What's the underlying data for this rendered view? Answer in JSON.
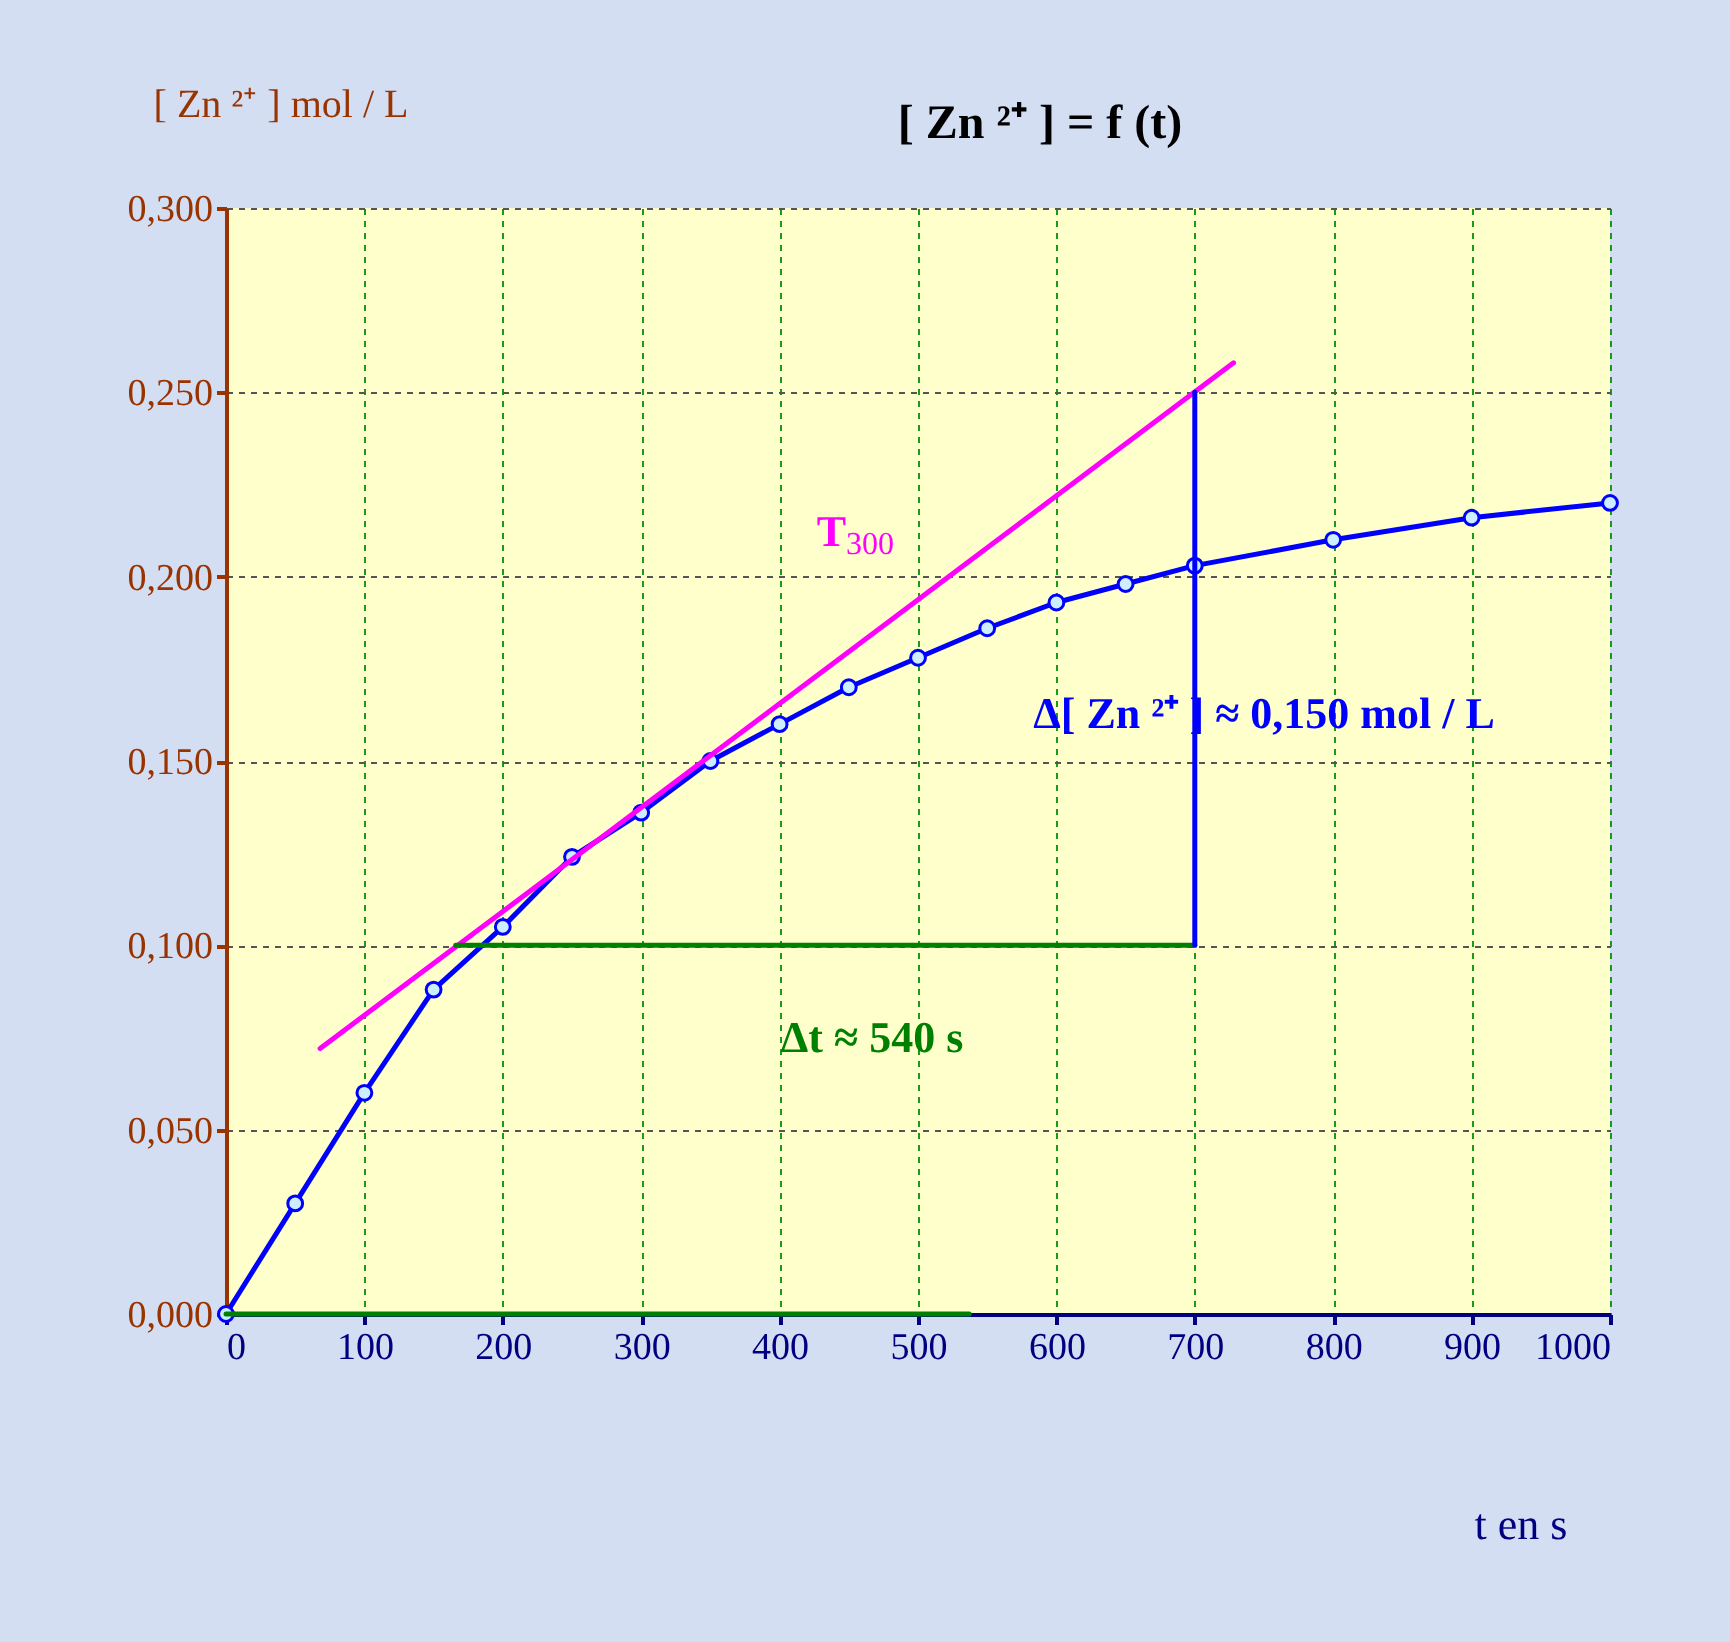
{
  "chart_data": {
    "type": "line",
    "title": "[ Zn ²⁺ ] = f (t)",
    "xlabel": "t en s",
    "ylabel": "[ Zn ²⁺ ] mol / L",
    "xlim": [
      0,
      1000
    ],
    "xticks": [
      0,
      100,
      200,
      300,
      400,
      500,
      600,
      700,
      800,
      900,
      1000
    ],
    "ylim": [
      0,
      0.3
    ],
    "yticks": [
      {
        "value": 0,
        "label": "0,000"
      },
      {
        "value": 0.05,
        "label": "0,050"
      },
      {
        "value": 0.1,
        "label": "0,100"
      },
      {
        "value": 0.15,
        "label": "0,150"
      },
      {
        "value": 0.2,
        "label": "0,200"
      },
      {
        "value": 0.25,
        "label": "0,250"
      },
      {
        "value": 0.3,
        "label": "0,300"
      }
    ],
    "grid": true,
    "line_style": "solid",
    "series": [
      {
        "color": "#0000ff",
        "marker": "circle",
        "x": [
          0,
          50,
          100,
          150,
          200,
          250,
          300,
          350,
          400,
          450,
          500,
          550,
          600,
          650,
          700,
          800,
          900,
          1000
        ],
        "values": [
          0,
          0.03,
          0.06,
          0.088,
          0.105,
          0.124,
          0.136,
          0.15,
          0.16,
          0.17,
          0.178,
          0.186,
          0.193,
          0.198,
          0.203,
          0.21,
          0.216,
          0.22
        ]
      },
      {
        "color": "#ff00ff",
        "x": [
          68,
          728
        ],
        "values": [
          0.072,
          0.258
        ]
      },
      {
        "color": "#008000",
        "x": [
          166,
          700
        ],
        "values": [
          0.1,
          0.1
        ]
      },
      {
        "color": "#0000ff",
        "x": [
          700,
          700
        ],
        "values": [
          0.1,
          0.25
        ]
      },
      {
        "color": "#008000",
        "x": [
          0,
          537
        ],
        "values": [
          0,
          0
        ]
      }
    ],
    "annotations": [
      "T$_{300}$",
      "Δ[ Zn ²⁺ ] ≈ 0,150 mol / L",
      "Δt ≈ 540 s"
    ]
  }
}
